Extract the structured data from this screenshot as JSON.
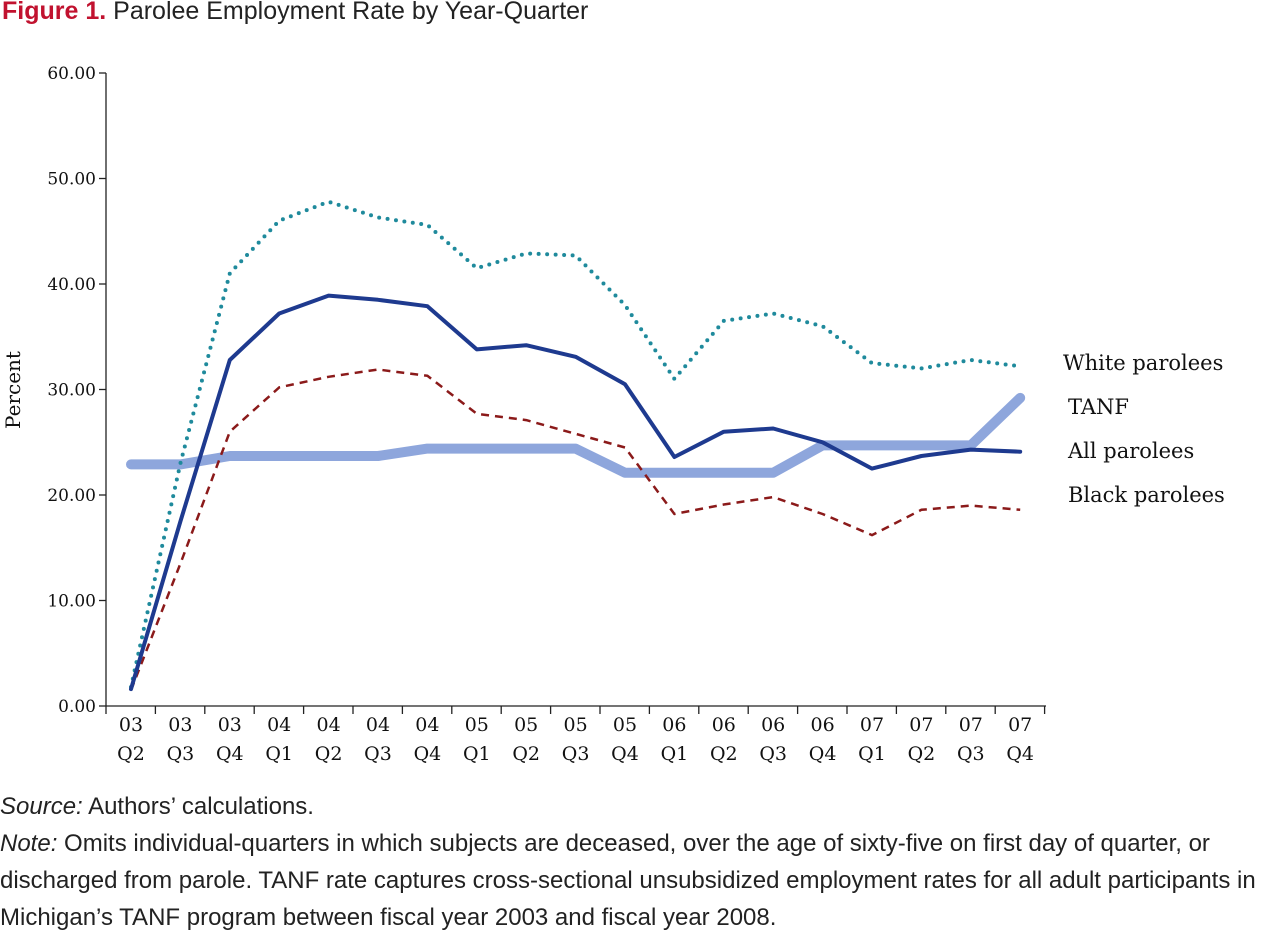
{
  "figure": {
    "label": "Figure 1.",
    "title": "Parolee Employment Rate by Year-Quarter"
  },
  "chart_data": {
    "type": "line",
    "ylabel": "Percent",
    "xlabel": "",
    "ylim": [
      0,
      60
    ],
    "yticks": [
      "0.00",
      "10.00",
      "20.00",
      "30.00",
      "40.00",
      "50.00",
      "60.00"
    ],
    "categories": [
      [
        "03",
        "Q2"
      ],
      [
        "03",
        "Q3"
      ],
      [
        "03",
        "Q4"
      ],
      [
        "04",
        "Q1"
      ],
      [
        "04",
        "Q2"
      ],
      [
        "04",
        "Q3"
      ],
      [
        "04",
        "Q4"
      ],
      [
        "05",
        "Q1"
      ],
      [
        "05",
        "Q2"
      ],
      [
        "05",
        "Q3"
      ],
      [
        "05",
        "Q4"
      ],
      [
        "06",
        "Q1"
      ],
      [
        "06",
        "Q2"
      ],
      [
        "06",
        "Q3"
      ],
      [
        "06",
        "Q4"
      ],
      [
        "07",
        "Q1"
      ],
      [
        "07",
        "Q2"
      ],
      [
        "07",
        "Q3"
      ],
      [
        "07",
        "Q4"
      ]
    ],
    "grid": false,
    "legend_placement": "right",
    "series": [
      {
        "name": "White parolees",
        "color": "#1f8a9c",
        "style": "dotted",
        "values": [
          1.8,
          23.0,
          41.0,
          46.0,
          47.8,
          46.3,
          45.6,
          41.5,
          42.9,
          42.7,
          38.0,
          31.0,
          36.5,
          37.2,
          36.0,
          32.5,
          32.0,
          32.8,
          32.2
        ]
      },
      {
        "name": "TANF",
        "color": "#8ea6dc",
        "style": "thick",
        "values": [
          22.9,
          22.9,
          23.7,
          23.7,
          23.7,
          23.7,
          24.4,
          24.4,
          24.4,
          24.4,
          22.1,
          22.1,
          22.1,
          22.1,
          24.7,
          24.7,
          24.7,
          24.7,
          29.2
        ]
      },
      {
        "name": "All parolees",
        "color": "#1e3a8f",
        "style": "solid",
        "values": [
          1.6,
          17.5,
          32.8,
          37.2,
          38.9,
          38.5,
          37.9,
          33.8,
          34.2,
          33.1,
          30.5,
          23.6,
          26.0,
          26.3,
          25.0,
          22.5,
          23.7,
          24.3,
          24.1
        ]
      },
      {
        "name": "Black parolees",
        "color": "#8b1a1a",
        "style": "dashed",
        "values": [
          1.5,
          13.5,
          26.0,
          30.2,
          31.2,
          31.9,
          31.3,
          27.7,
          27.1,
          25.8,
          24.5,
          18.2,
          19.1,
          19.8,
          18.2,
          16.2,
          18.6,
          19.0,
          18.6
        ]
      }
    ]
  },
  "notes": {
    "source_label": "Source:",
    "source_text": " Authors’ calculations.",
    "note_label": "Note:",
    "note_text": " Omits individual-quarters in which subjects are deceased, over the age of sixty-five on first day of quarter, or discharged from parole. TANF rate captures cross-sectional unsubsidized employment rates for all adult participants in Michigan’s TANF program between fiscal year 2003 and fiscal year 2008."
  }
}
